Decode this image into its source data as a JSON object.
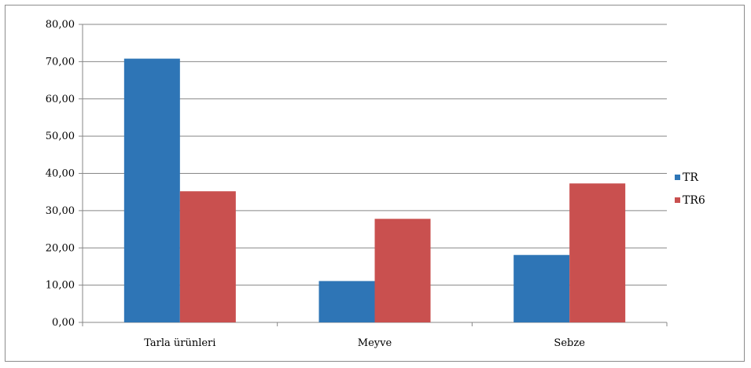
{
  "chart_data": {
    "type": "bar",
    "title": "",
    "xlabel": "",
    "ylabel": "",
    "categories": [
      "Tarla ürünleri",
      "Meyve",
      "Sebze"
    ],
    "series": [
      {
        "name": "TR",
        "values": [
          70.8,
          11.1,
          18.1
        ],
        "color": "#2e75b6"
      },
      {
        "name": "TR6",
        "values": [
          35.2,
          27.8,
          37.3
        ],
        "color": "#c9504f"
      }
    ],
    "ylim": [
      0,
      80
    ],
    "yticks": [
      "0,00",
      "10,00",
      "20,00",
      "30,00",
      "40,00",
      "50,00",
      "60,00",
      "70,00",
      "80,00"
    ],
    "grid": true,
    "legend_position": "right"
  }
}
